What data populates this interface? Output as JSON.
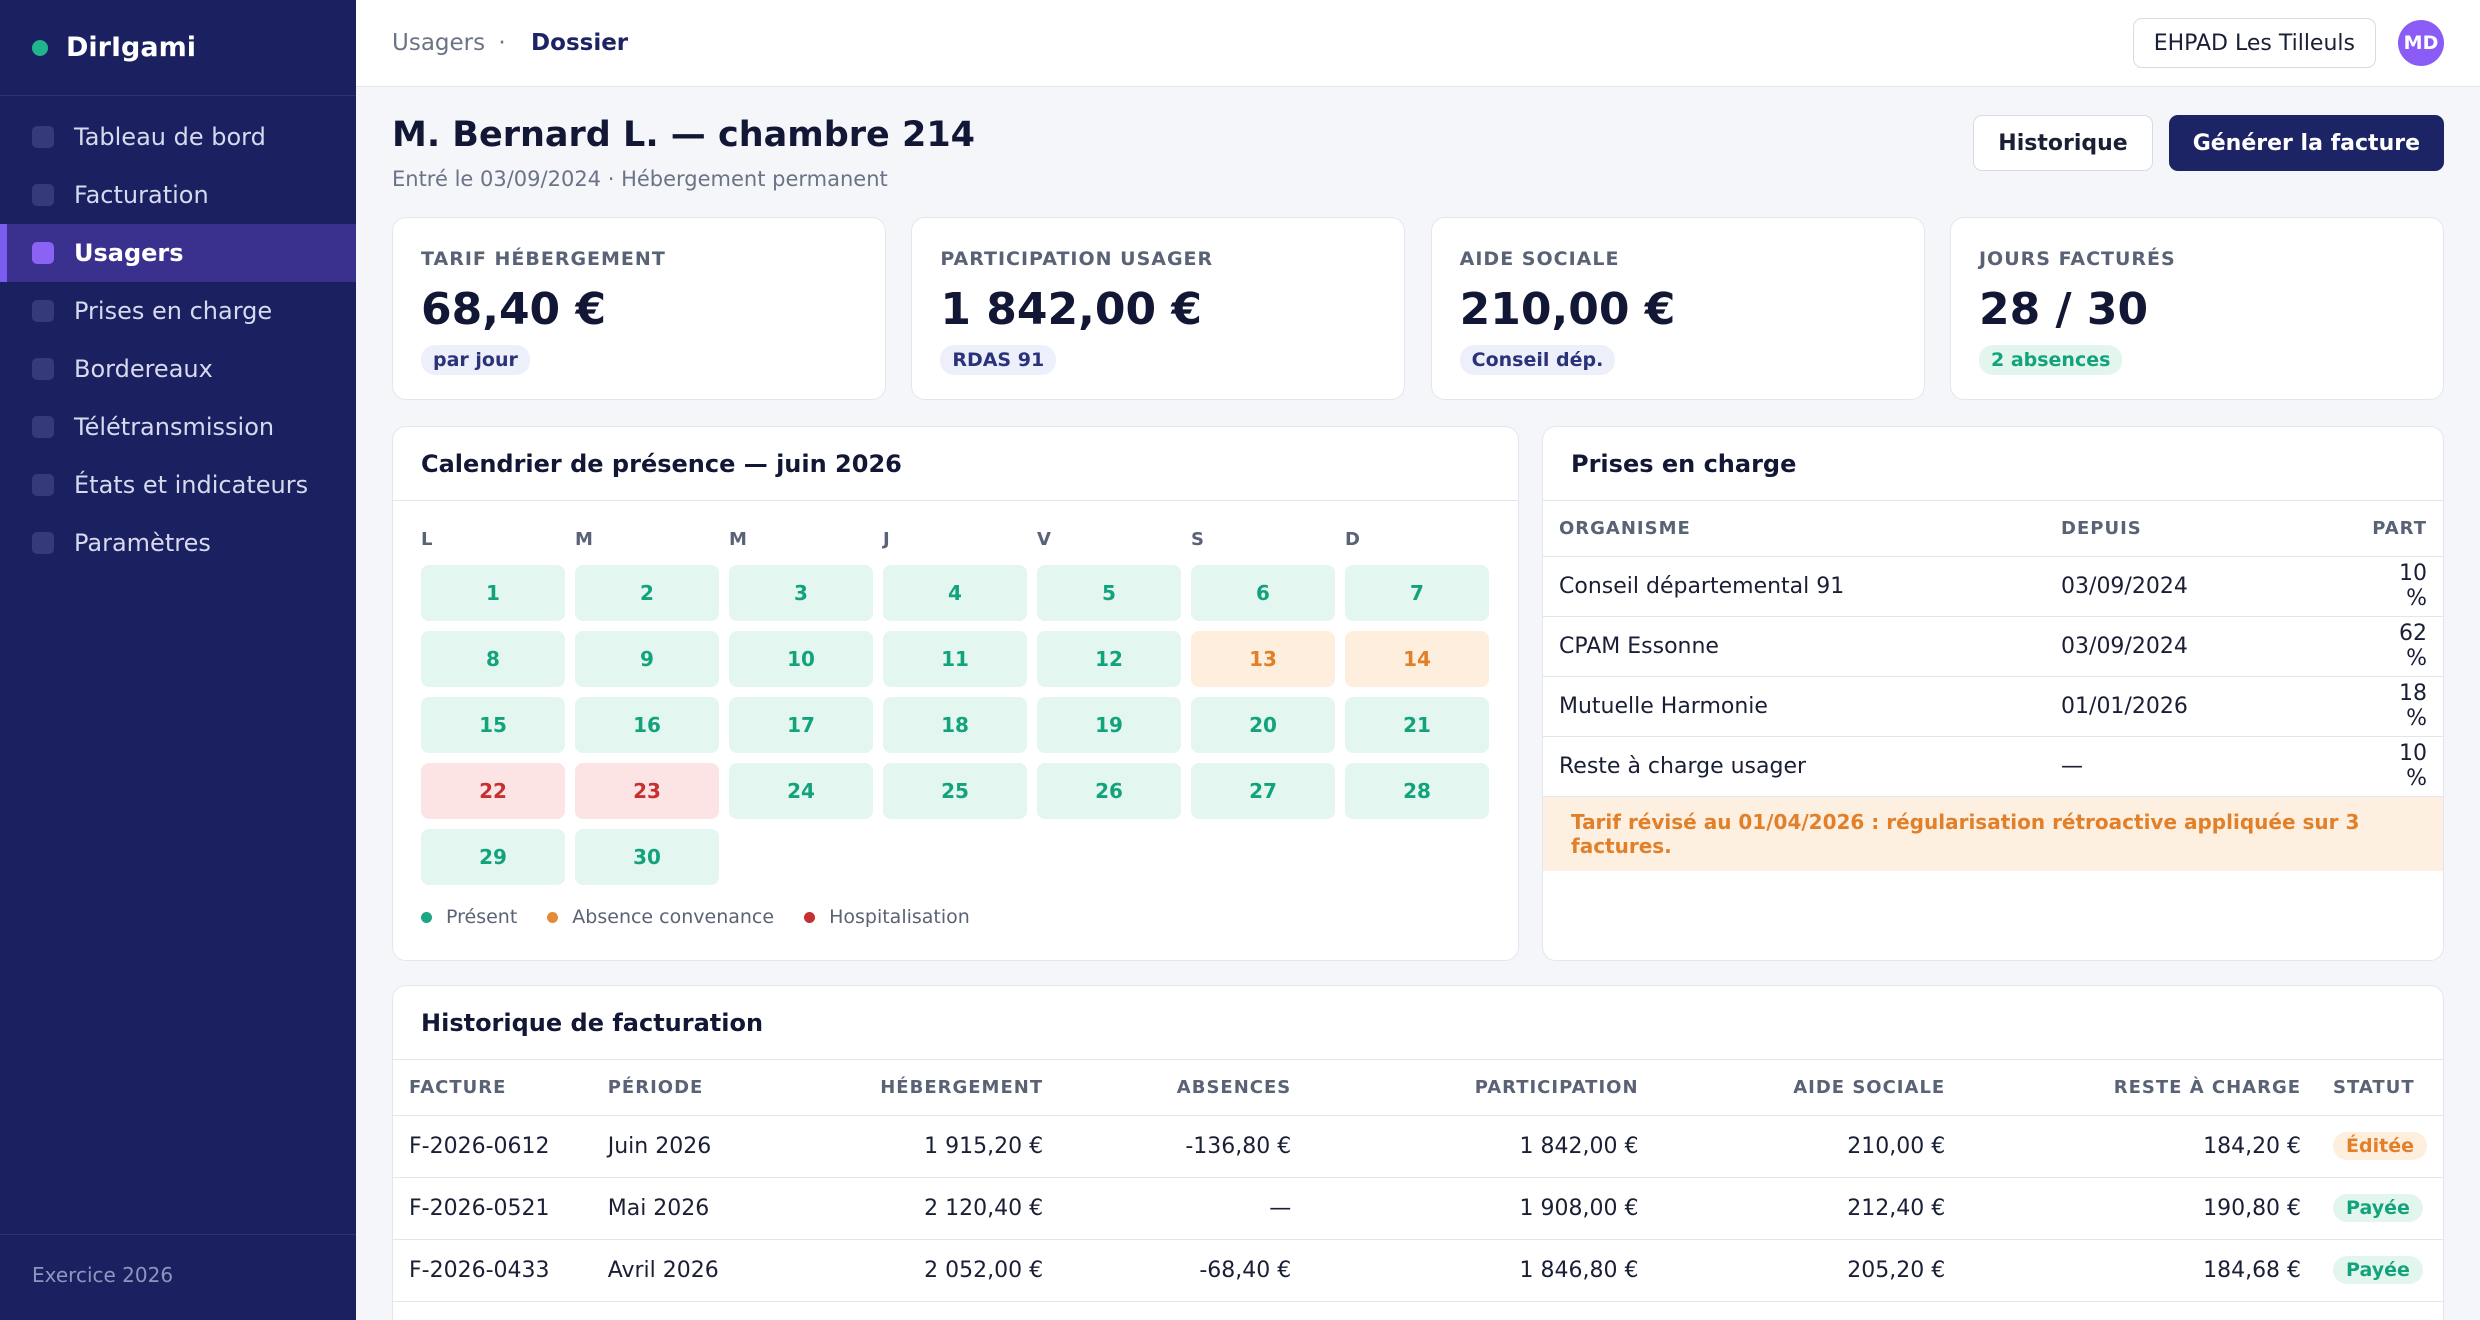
{
  "app": {
    "name": "DirIgami",
    "footer": "Exercice 2026"
  },
  "sidebar": {
    "items": [
      {
        "label": "Tableau de bord"
      },
      {
        "label": "Facturation"
      },
      {
        "label": "Usagers"
      },
      {
        "label": "Prises en charge"
      },
      {
        "label": "Bordereaux"
      },
      {
        "label": "Télétransmission"
      },
      {
        "label": "États et indicateurs"
      },
      {
        "label": "Paramètres"
      }
    ],
    "active": "Usagers"
  },
  "breadcrumb": {
    "parent": "Usagers",
    "separator": "·",
    "current": "Dossier"
  },
  "topbar": {
    "facility": "EHPAD Les Tilleuls",
    "avatar_initials": "MD"
  },
  "header": {
    "title": "M. Bernard L. — chambre 214",
    "subtitle": "Entré le 03/09/2024 · Hébergement permanent",
    "history_button": "Historique",
    "invoice_button": "Générer la facture"
  },
  "kpis": [
    {
      "label": "TARIF HÉBERGEMENT",
      "value": "68,40 €",
      "pill": "par jour"
    },
    {
      "label": "PARTICIPATION USAGER",
      "value": "1 842,00 €",
      "pill": "RDAS 91"
    },
    {
      "label": "AIDE SOCIALE",
      "value": "210,00 €",
      "pill": "Conseil dép."
    },
    {
      "label": "JOURS FACTURÉS",
      "value": "28 / 30",
      "pill": "2 absences"
    }
  ],
  "calendar": {
    "title": "Calendrier de présence — juin 2026",
    "weekdays": [
      "L",
      "M",
      "M",
      "J",
      "V",
      "S",
      "D"
    ],
    "days": [
      {
        "d": "1",
        "s": "p"
      },
      {
        "d": "2",
        "s": "p"
      },
      {
        "d": "3",
        "s": "p"
      },
      {
        "d": "4",
        "s": "p"
      },
      {
        "d": "5",
        "s": "p"
      },
      {
        "d": "6",
        "s": "p"
      },
      {
        "d": "7",
        "s": "p"
      },
      {
        "d": "8",
        "s": "p"
      },
      {
        "d": "9",
        "s": "p"
      },
      {
        "d": "10",
        "s": "p"
      },
      {
        "d": "11",
        "s": "p"
      },
      {
        "d": "12",
        "s": "p"
      },
      {
        "d": "13",
        "s": "a"
      },
      {
        "d": "14",
        "s": "a"
      },
      {
        "d": "15",
        "s": "p"
      },
      {
        "d": "16",
        "s": "p"
      },
      {
        "d": "17",
        "s": "p"
      },
      {
        "d": "18",
        "s": "p"
      },
      {
        "d": "19",
        "s": "p"
      },
      {
        "d": "20",
        "s": "p"
      },
      {
        "d": "21",
        "s": "p"
      },
      {
        "d": "22",
        "s": "h"
      },
      {
        "d": "23",
        "s": "h"
      },
      {
        "d": "24",
        "s": "p"
      },
      {
        "d": "25",
        "s": "p"
      },
      {
        "d": "26",
        "s": "p"
      },
      {
        "d": "27",
        "s": "p"
      },
      {
        "d": "28",
        "s": "p"
      },
      {
        "d": "29",
        "s": "p"
      },
      {
        "d": "30",
        "s": "p"
      }
    ],
    "legend": [
      {
        "label": "Présent",
        "color": "#1aa784"
      },
      {
        "label": "Absence convenance",
        "color": "#e58a37"
      },
      {
        "label": "Hospitalisation",
        "color": "#c53030"
      }
    ]
  },
  "prises": {
    "title": "Prises en charge",
    "columns": [
      "ORGANISME",
      "DEPUIS",
      "PART"
    ],
    "rows": [
      [
        "Conseil départemental 91",
        "03/09/2024",
        "10 %"
      ],
      [
        "CPAM Essonne",
        "03/09/2024",
        "62 %"
      ],
      [
        "Mutuelle Harmonie",
        "01/01/2026",
        "18 %"
      ],
      [
        "Reste à charge usager",
        "—",
        "10 %"
      ]
    ],
    "note": "Tarif révisé au 01/04/2026 : régularisation rétroactive appliquée sur 3 factures."
  },
  "history": {
    "title": "Historique de facturation",
    "columns": [
      "FACTURE",
      "PÉRIODE",
      "HÉBERGEMENT",
      "ABSENCES",
      "PARTICIPATION",
      "AIDE SOCIALE",
      "RESTE À CHARGE",
      "STATUT"
    ],
    "rows": [
      {
        "facture": "F-2026-0612",
        "periode": "Juin 2026",
        "hebergement": "1 915,20 €",
        "absences": "-136,80 €",
        "participation": "1 842,00 €",
        "aide": "210,00 €",
        "reste": "184,20 €",
        "statut": "Éditée",
        "statut_type": "ed"
      },
      {
        "facture": "F-2026-0521",
        "periode": "Mai 2026",
        "hebergement": "2 120,40 €",
        "absences": "—",
        "participation": "1 908,00 €",
        "aide": "212,40 €",
        "reste": "190,80 €",
        "statut": "Payée",
        "statut_type": "pa"
      },
      {
        "facture": "F-2026-0433",
        "periode": "Avril 2026",
        "hebergement": "2 052,00 €",
        "absences": "-68,40 €",
        "participation": "1 846,80 €",
        "aide": "205,20 €",
        "reste": "184,68 €",
        "statut": "Payée",
        "statut_type": "pa"
      }
    ]
  }
}
